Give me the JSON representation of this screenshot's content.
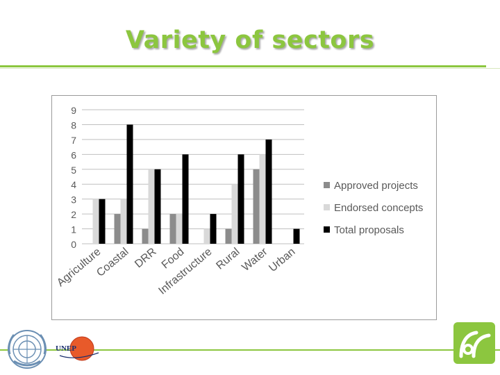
{
  "slide": {
    "title": "Variety of sectors",
    "unep_text": "UNEP"
  },
  "colors": {
    "accent": "#8cc63f",
    "approved": "#8c8c8c",
    "endorsed": "#d9d9d9",
    "total": "#000000"
  },
  "chart_data": {
    "type": "bar",
    "categories": [
      "Agriculture",
      "Coastal",
      "DRR",
      "Food",
      "Infrastructure",
      "Rural",
      "Water",
      "Urban"
    ],
    "series": [
      {
        "name": "Approved projects",
        "values": [
          0,
          2,
          1,
          2,
          0,
          1,
          5,
          0
        ]
      },
      {
        "name": "Endorsed concepts",
        "values": [
          3,
          3,
          5,
          2,
          1,
          4,
          6,
          0
        ]
      },
      {
        "name": "Total proposals",
        "values": [
          3,
          8,
          5,
          6,
          2,
          6,
          7,
          1
        ]
      }
    ],
    "yticks": [
      "0",
      "1",
      "2",
      "3",
      "4",
      "5",
      "6",
      "7",
      "8",
      "9"
    ],
    "ylim": [
      0,
      9
    ],
    "grid": true,
    "legend": "right"
  }
}
